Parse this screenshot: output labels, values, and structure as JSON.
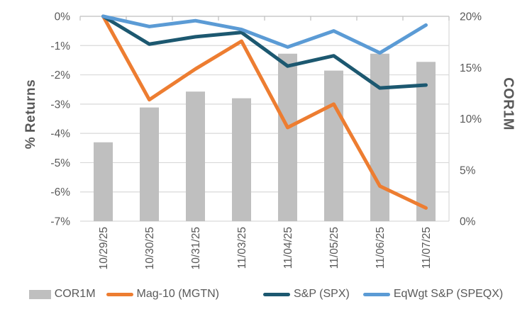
{
  "chart_data": {
    "type": "combo-bar-line",
    "title": "",
    "categories": [
      "10/29/25",
      "10/30/25",
      "10/31/25",
      "11/03/25",
      "11/04/25",
      "11/05/25",
      "11/06/25",
      "11/07/25"
    ],
    "bar_series": {
      "name": "COR1M",
      "axis": "right",
      "color": "#BFBFBF",
      "values": [
        7.7,
        11.1,
        12.65,
        12.0,
        16.35,
        14.7,
        16.35,
        15.55
      ]
    },
    "line_series": [
      {
        "name": "Mag-10 (MGTN)",
        "axis": "left",
        "color": "#ED7D31",
        "values": [
          0,
          -2.85,
          -1.8,
          -0.85,
          -3.8,
          -3.0,
          -5.8,
          -6.55
        ]
      },
      {
        "name": "S&P (SPX)",
        "axis": "left",
        "color": "#1C5870",
        "values": [
          0,
          -0.95,
          -0.7,
          -0.55,
          -1.7,
          -1.35,
          -2.45,
          -2.35
        ]
      },
      {
        "name": "EqWgt S&P (SPEQX)",
        "axis": "left",
        "color": "#5B9BD5",
        "values": [
          0,
          -0.35,
          -0.15,
          -0.45,
          -1.05,
          -0.5,
          -1.25,
          -0.3
        ]
      }
    ],
    "left_axis": {
      "title": "% Returns",
      "min": -7,
      "max": 0,
      "step": 1,
      "tick_labels": [
        "0%",
        "-1%",
        "-2%",
        "-3%",
        "-4%",
        "-5%",
        "-6%",
        "-7%"
      ]
    },
    "right_axis": {
      "title": "COR1M",
      "min": 0,
      "max": 20,
      "step": 5,
      "tick_labels": [
        "20%",
        "15%",
        "10%",
        "5%",
        "0%"
      ]
    },
    "grid": true,
    "legend_position": "bottom",
    "colors": {
      "gridline": "#D9D9D9",
      "axis_line": "#BFBFBF",
      "tick_text": "#595959"
    }
  }
}
